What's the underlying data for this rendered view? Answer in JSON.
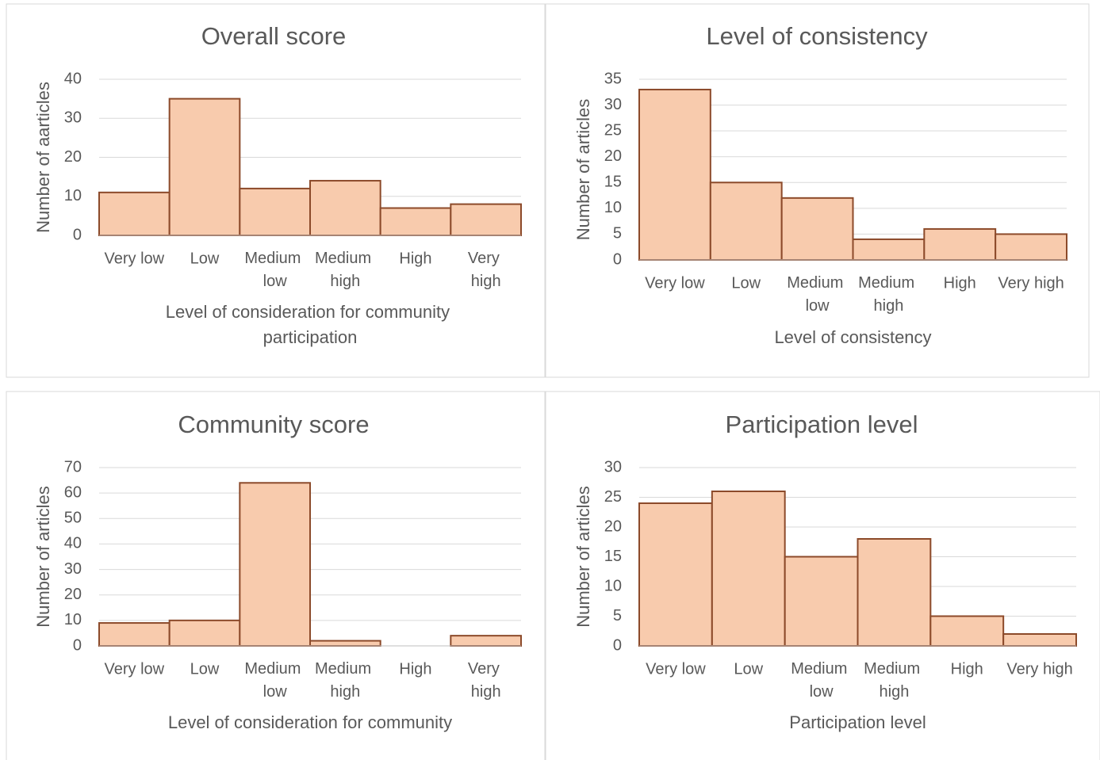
{
  "chart_data": [
    {
      "type": "bar",
      "title": "Overall score",
      "xlabel": "Level of consideration for community participation",
      "ylabel": "Number of aarticles",
      "categories": [
        "Very low",
        "Low",
        "Medium low",
        "Medium high",
        "High",
        "Very high"
      ],
      "values": [
        11,
        35,
        12,
        14,
        7,
        8
      ],
      "ylim": [
        0,
        40
      ],
      "yticks": [
        0,
        10,
        20,
        30,
        40
      ],
      "grid": true,
      "color": "#f8cbad",
      "edgecolor": "#8c4a2a"
    },
    {
      "type": "bar",
      "title": "Level of consistency",
      "xlabel": "Level of consistency",
      "ylabel": "Number of articles",
      "categories": [
        "Very low",
        "Low",
        "Medium low",
        "Medium high",
        "High",
        "Very high"
      ],
      "values": [
        33,
        15,
        12,
        4,
        6,
        5
      ],
      "ylim": [
        0,
        35
      ],
      "yticks": [
        0,
        5,
        10,
        15,
        20,
        25,
        30,
        35
      ],
      "grid": true,
      "color": "#f8cbad",
      "edgecolor": "#8c4a2a"
    },
    {
      "type": "bar",
      "title": "Community score",
      "xlabel": "Level of consideration for community",
      "ylabel": "Number of articles",
      "categories": [
        "Very low",
        "Low",
        "Medium low",
        "Medium high",
        "High",
        "Very high"
      ],
      "values": [
        9,
        10,
        64,
        2,
        0,
        4
      ],
      "ylim": [
        0,
        70
      ],
      "yticks": [
        0,
        10,
        20,
        30,
        40,
        50,
        60,
        70
      ],
      "grid": true,
      "color": "#f8cbad",
      "edgecolor": "#8c4a2a"
    },
    {
      "type": "bar",
      "title": "Participation level",
      "xlabel": "Participation level",
      "ylabel": "Number of articles",
      "categories": [
        "Very low",
        "Low",
        "Medium low",
        "Medium high",
        "High",
        "Very high"
      ],
      "values": [
        24,
        26,
        15,
        18,
        5,
        2
      ],
      "ylim": [
        0,
        30
      ],
      "yticks": [
        0,
        5,
        10,
        15,
        20,
        25,
        30
      ],
      "grid": true,
      "color": "#f8cbad",
      "edgecolor": "#8c4a2a"
    }
  ]
}
